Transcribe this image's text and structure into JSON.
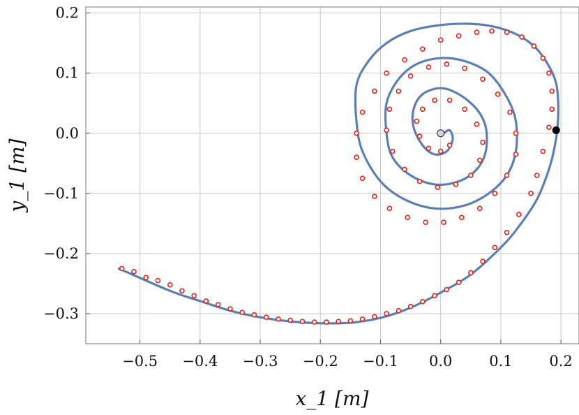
{
  "chart_data": {
    "type": "line",
    "title": "",
    "xlabel": "x_1 [m]",
    "ylabel": "y_1 [m]",
    "xlim": [
      -0.59,
      0.23
    ],
    "ylim": [
      -0.35,
      0.21
    ],
    "grid": true,
    "xticks": [
      -0.5,
      -0.4,
      -0.3,
      -0.2,
      -0.1,
      0.0,
      0.1,
      0.2
    ],
    "xtick_labels": [
      "−0.5",
      "−0.4",
      "−0.3",
      "−0.2",
      "−0.1",
      "0.0",
      "0.1",
      "0.2"
    ],
    "yticks": [
      -0.3,
      -0.2,
      -0.1,
      0.0,
      0.1,
      0.2
    ],
    "ytick_labels": [
      "−0.3",
      "−0.2",
      "−0.1",
      "0.0",
      "0.1",
      "0.2"
    ],
    "series": [
      {
        "kind": "line",
        "color": "#5b7fb4",
        "x": [
          -0.535,
          -0.45,
          -0.4,
          -0.35,
          -0.3,
          -0.25,
          -0.2,
          -0.15,
          -0.1,
          -0.05,
          0.0,
          0.05,
          0.1,
          0.13,
          0.16,
          0.18,
          0.19,
          0.195,
          0.195,
          0.19,
          0.175,
          0.155,
          0.125,
          0.09,
          0.05,
          0.0,
          -0.05,
          -0.09,
          -0.12,
          -0.14,
          -0.14,
          -0.13,
          -0.1,
          -0.06,
          -0.01,
          0.04,
          0.08,
          0.11,
          0.125,
          0.125,
          0.11,
          0.08,
          0.04,
          0.0,
          -0.04,
          -0.07,
          -0.09,
          -0.09,
          -0.08,
          -0.05,
          -0.01,
          0.03,
          0.06,
          0.075,
          0.075,
          0.06,
          0.03,
          0.0,
          -0.03,
          -0.045,
          -0.045,
          -0.03,
          -0.01,
          0.01,
          0.02,
          0.015,
          0.005
        ],
        "y": [
          -0.225,
          -0.262,
          -0.279,
          -0.295,
          -0.306,
          -0.313,
          -0.316,
          -0.315,
          -0.307,
          -0.29,
          -0.265,
          -0.235,
          -0.19,
          -0.155,
          -0.11,
          -0.06,
          -0.02,
          0.02,
          0.06,
          0.09,
          0.12,
          0.145,
          0.165,
          0.177,
          0.182,
          0.18,
          0.17,
          0.15,
          0.12,
          0.08,
          0.02,
          -0.03,
          -0.08,
          -0.11,
          -0.125,
          -0.12,
          -0.1,
          -0.07,
          -0.03,
          0.02,
          0.06,
          0.1,
          0.12,
          0.125,
          0.115,
          0.09,
          0.05,
          0.0,
          -0.04,
          -0.07,
          -0.085,
          -0.08,
          -0.06,
          -0.03,
          0.01,
          0.04,
          0.065,
          0.075,
          0.065,
          0.04,
          0.01,
          -0.02,
          -0.035,
          -0.03,
          -0.01,
          0.005,
          0.0
        ]
      },
      {
        "kind": "scatter",
        "color": "#e2231a",
        "x": [
          -0.53,
          -0.51,
          -0.49,
          -0.47,
          -0.45,
          -0.43,
          -0.41,
          -0.39,
          -0.37,
          -0.35,
          -0.33,
          -0.31,
          -0.29,
          -0.27,
          -0.25,
          -0.23,
          -0.21,
          -0.19,
          -0.17,
          -0.15,
          -0.13,
          -0.11,
          -0.09,
          -0.07,
          -0.05,
          -0.03,
          -0.01,
          0.01,
          0.03,
          0.05,
          0.07,
          0.09,
          0.11,
          0.13,
          0.15,
          0.16,
          0.17,
          0.18,
          0.185,
          0.185,
          0.18,
          0.17,
          0.155,
          0.135,
          0.11,
          0.085,
          0.06,
          0.03,
          0.0,
          -0.03,
          -0.06,
          -0.09,
          -0.11,
          -0.13,
          -0.14,
          -0.14,
          -0.13,
          -0.11,
          -0.085,
          -0.055,
          -0.025,
          0.005,
          0.035,
          0.065,
          0.09,
          0.11,
          0.125,
          0.125,
          0.115,
          0.095,
          0.07,
          0.04,
          0.01,
          -0.02,
          -0.05,
          -0.07,
          -0.085,
          -0.09,
          -0.08,
          -0.06,
          -0.035,
          -0.005,
          0.025,
          0.05,
          0.065,
          0.07,
          0.06,
          0.04,
          0.015,
          -0.01,
          -0.03,
          -0.04,
          -0.035,
          -0.02,
          0.0,
          0.015
        ],
        "y": [
          -0.225,
          -0.23,
          -0.24,
          -0.245,
          -0.252,
          -0.262,
          -0.27,
          -0.279,
          -0.285,
          -0.292,
          -0.298,
          -0.302,
          -0.306,
          -0.309,
          -0.311,
          -0.313,
          -0.314,
          -0.314,
          -0.313,
          -0.312,
          -0.309,
          -0.305,
          -0.3,
          -0.295,
          -0.288,
          -0.28,
          -0.27,
          -0.26,
          -0.248,
          -0.232,
          -0.213,
          -0.19,
          -0.165,
          -0.135,
          -0.1,
          -0.07,
          -0.03,
          0.01,
          0.04,
          0.07,
          0.1,
          0.125,
          0.145,
          0.16,
          0.168,
          0.17,
          0.168,
          0.162,
          0.155,
          0.14,
          0.122,
          0.1,
          0.07,
          0.035,
          0.0,
          -0.04,
          -0.075,
          -0.105,
          -0.125,
          -0.14,
          -0.148,
          -0.148,
          -0.14,
          -0.125,
          -0.1,
          -0.07,
          -0.035,
          0.0,
          0.035,
          0.065,
          0.09,
          0.108,
          0.115,
          0.11,
          0.095,
          0.07,
          0.04,
          0.005,
          -0.03,
          -0.06,
          -0.08,
          -0.09,
          -0.085,
          -0.07,
          -0.045,
          -0.015,
          0.015,
          0.04,
          0.055,
          0.055,
          0.04,
          0.02,
          -0.005,
          -0.025,
          -0.03,
          -0.02
        ]
      }
    ],
    "markers": [
      {
        "x": 0.0,
        "y": 0.0,
        "fill": "#d6d6d6",
        "stroke": "#222222"
      },
      {
        "x": 0.192,
        "y": 0.005,
        "fill": "#000000",
        "stroke": "#000000"
      }
    ]
  }
}
